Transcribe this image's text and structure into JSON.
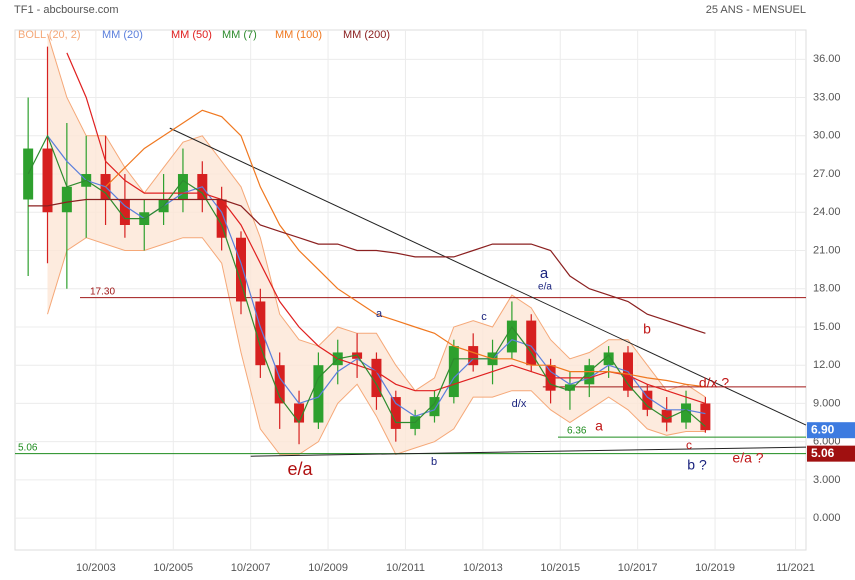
{
  "chart_data": {
    "type": "candlestick",
    "title": "TF1 - abcbourse.com",
    "subtitle": "25 ANS - MENSUEL",
    "x": [
      2002.0,
      2002.5,
      2003.0,
      2003.5,
      2004.0,
      2004.5,
      2005.0,
      2005.5,
      2006.0,
      2006.5,
      2007.0,
      2007.5,
      2008.0,
      2008.5,
      2009.0,
      2009.5,
      2010.0,
      2010.5,
      2011.0,
      2011.5,
      2012.0,
      2012.5,
      2013.0,
      2013.5,
      2014.0,
      2014.5,
      2015.0,
      2015.5,
      2016.0,
      2016.5,
      2017.0,
      2017.5,
      2018.0,
      2018.5,
      2019.0,
      2019.5
    ],
    "open": [
      25,
      29,
      24,
      26,
      27,
      25,
      23,
      24,
      25,
      27,
      25,
      22,
      17,
      12,
      9,
      7.5,
      12,
      13,
      12.5,
      9.5,
      7,
      8,
      9.5,
      13.5,
      12,
      13,
      15.5,
      12,
      10,
      10.5,
      12,
      13,
      10,
      8.5,
      7.5,
      9
    ],
    "high": [
      33,
      37,
      31,
      30,
      30,
      27,
      25,
      27,
      29,
      28,
      26,
      22.5,
      18,
      13,
      10,
      13,
      14,
      14.5,
      13,
      10,
      8.5,
      10,
      14,
      14.5,
      14,
      17,
      16,
      12.5,
      11.5,
      12.5,
      13.5,
      13.5,
      10.5,
      9.5,
      10,
      9.5
    ],
    "low": [
      19,
      20,
      18,
      22,
      23,
      22,
      21,
      23,
      24,
      24,
      21,
      16,
      11,
      7,
      5.8,
      7,
      10.5,
      11,
      8.5,
      6,
      6.5,
      7.5,
      9,
      11.5,
      10.5,
      12.5,
      11.5,
      9,
      8.5,
      9.5,
      11,
      9.5,
      8,
      6.8,
      7,
      6.7
    ],
    "close": [
      29,
      24,
      26,
      27,
      25,
      23,
      24,
      25,
      27,
      25,
      22,
      17,
      12,
      9,
      7.5,
      12,
      13,
      12.5,
      9.5,
      7,
      8,
      9.5,
      13.5,
      12,
      13,
      15.5,
      12,
      10,
      10.5,
      12,
      13,
      10,
      8.5,
      7.5,
      9,
      6.9
    ],
    "up_color": "#2ea02e",
    "down_color": "#d62020",
    "bollinger": {
      "name": "BOLL (20, 2)",
      "color": "#f5a878",
      "fill": "#fde6d6",
      "upper": [
        null,
        38,
        33,
        30,
        30,
        27.5,
        25.5,
        27.5,
        29.5,
        30,
        28,
        26,
        22,
        16,
        14,
        13.5,
        15,
        14.5,
        14.5,
        12,
        10,
        11,
        15,
        15.5,
        15,
        17.5,
        16.5,
        14,
        12.5,
        13,
        14,
        14,
        12,
        10,
        10.5,
        9.5
      ],
      "lower": [
        null,
        16,
        21,
        22,
        21.5,
        21,
        21,
        21.5,
        22,
        22,
        20,
        13,
        7,
        5,
        5,
        6,
        9,
        10.5,
        8,
        5,
        5.5,
        6,
        7,
        9.5,
        9.5,
        10,
        10,
        8.5,
        7.5,
        8.5,
        9.5,
        8.5,
        7,
        6.5,
        6.8,
        6.8
      ]
    },
    "series": [
      {
        "name": "MM (20)",
        "color": "#5b7fdc",
        "values": [
          null,
          30,
          28,
          26.5,
          26,
          24.5,
          23.5,
          24.5,
          25.5,
          26,
          24,
          20,
          15,
          11,
          9,
          9.5,
          11.5,
          12.5,
          11.5,
          9,
          8,
          8.5,
          11,
          12.5,
          12.5,
          14,
          13.5,
          11.5,
          10.5,
          11,
          12,
          11.5,
          9.5,
          8.5,
          8.5,
          8.2
        ]
      },
      {
        "name": "MM (50)",
        "color": "#e02020",
        "values": [
          null,
          null,
          36.5,
          33,
          28,
          26.5,
          25.5,
          25.5,
          25.5,
          25.5,
          25,
          23,
          20,
          17,
          15,
          13.5,
          12.5,
          12,
          11.5,
          10.5,
          10,
          10,
          10.5,
          11,
          11.5,
          12,
          11.5,
          11,
          11,
          11,
          11.5,
          11.2,
          10.5,
          10,
          9.5,
          9
        ]
      },
      {
        "name": "MM (7)",
        "color": "#2e8b2e",
        "values": [
          27,
          30,
          26,
          26.5,
          25.5,
          23.5,
          23.5,
          24.5,
          26.5,
          25.5,
          23,
          18.5,
          13.5,
          9.5,
          7.5,
          11,
          12.5,
          12.8,
          10.5,
          7.5,
          7.5,
          9,
          12.5,
          12.5,
          12.5,
          15,
          13,
          10.5,
          10,
          11.5,
          12.8,
          10.5,
          8.8,
          7.8,
          8.5,
          7.2
        ]
      },
      {
        "name": "MM (100)",
        "color": "#f07820",
        "values": [
          null,
          null,
          null,
          null,
          26,
          27.5,
          29,
          30,
          31,
          32,
          31.5,
          30,
          26,
          23,
          21,
          19.5,
          18,
          17,
          16,
          15.5,
          15,
          14.5,
          13.5,
          13,
          12.5,
          12.5,
          12,
          12,
          11.5,
          11.5,
          11.5,
          11.3,
          11,
          10.8,
          10.5,
          10.3
        ]
      },
      {
        "name": "MM (200)",
        "color": "#8b2020",
        "values": [
          24.5,
          24.5,
          24.8,
          25,
          25,
          25,
          25,
          25,
          25,
          25,
          25,
          24.5,
          23,
          22.5,
          22,
          21.5,
          21.5,
          21,
          21,
          20.8,
          20.5,
          20.5,
          20.5,
          21,
          21.5,
          21.5,
          21.5,
          21,
          19,
          18,
          17.5,
          17,
          16,
          15.5,
          15,
          14.5
        ]
      }
    ],
    "xlim": [
      2001.66,
      2022.1
    ],
    "ylim": [
      -2.5,
      38.3
    ],
    "xticks": [
      {
        "value": 2003.75,
        "label": "10/2003"
      },
      {
        "value": 2005.75,
        "label": "10/2005"
      },
      {
        "value": 2007.75,
        "label": "10/2007"
      },
      {
        "value": 2009.75,
        "label": "10/2009"
      },
      {
        "value": 2011.75,
        "label": "10/2011"
      },
      {
        "value": 2013.75,
        "label": "10/2013"
      },
      {
        "value": 2015.75,
        "label": "10/2015"
      },
      {
        "value": 2017.75,
        "label": "10/2017"
      },
      {
        "value": 2019.75,
        "label": "10/2019"
      },
      {
        "value": 2021.83,
        "label": "11/2021"
      }
    ],
    "yticks": [
      {
        "value": 0,
        "label": "0.000"
      },
      {
        "value": 3,
        "label": "3.000"
      },
      {
        "value": 6,
        "label": "6.000"
      },
      {
        "value": 9,
        "label": "9.000"
      },
      {
        "value": 12,
        "label": "12.00"
      },
      {
        "value": 15,
        "label": "15.00"
      },
      {
        "value": 18,
        "label": "18.00"
      },
      {
        "value": 21,
        "label": "21.00"
      },
      {
        "value": 24,
        "label": "24.00"
      },
      {
        "value": 27,
        "label": "27.00"
      },
      {
        "value": 30,
        "label": "30.00"
      },
      {
        "value": 33,
        "label": "33.00"
      },
      {
        "value": 36,
        "label": "36.00"
      }
    ],
    "grid": true,
    "levels": [
      {
        "value": 17.3,
        "label": "17.30",
        "color": "#a01818"
      },
      {
        "value": 5.06,
        "label": "5.06",
        "color": "#1e8c1e"
      },
      {
        "value": 6.36,
        "label": "6.36",
        "color": "#1e8c1e"
      }
    ],
    "trendlines": [
      {
        "x": [
          2005.66,
          2022.1
        ],
        "y": [
          30.6,
          7.3
        ],
        "color": "#222222"
      },
      {
        "x": [
          2007.75,
          2022.1
        ],
        "y": [
          4.86,
          5.57
        ],
        "color": "#222222"
      },
      {
        "x": [
          2015.3,
          2022.1
        ],
        "y": [
          10.3,
          10.3
        ],
        "color": "#a01818"
      }
    ],
    "price_tags": [
      {
        "value": 6.9,
        "label": "6.90",
        "color": "#3d7be0"
      },
      {
        "value": 5.06,
        "label": "5.06",
        "color": "#a01010"
      }
    ],
    "annotations": [
      {
        "text": "e/a",
        "color": "#b01010"
      },
      {
        "text": "a",
        "color": "#1a237e"
      },
      {
        "text": "b",
        "color": "#1a237e"
      },
      {
        "text": "c",
        "color": "#1a237e"
      },
      {
        "text": "d/x",
        "color": "#1a237e"
      },
      {
        "text": "a",
        "color": "#1a237e"
      },
      {
        "text": "e/a",
        "color": "#1a237e"
      },
      {
        "text": "a",
        "color": "#c01818"
      },
      {
        "text": "b",
        "color": "#c01818"
      },
      {
        "text": "c",
        "color": "#c01818"
      },
      {
        "text": "d/x ?",
        "color": "#c01818"
      },
      {
        "text": "b ?",
        "color": "#1a237e"
      },
      {
        "text": "e/a ?",
        "color": "#c01818"
      }
    ]
  }
}
